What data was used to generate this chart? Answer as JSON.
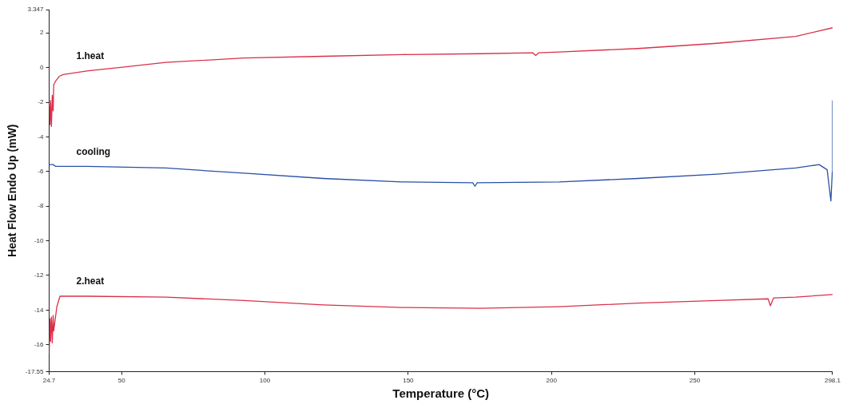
{
  "chart_data": {
    "type": "line",
    "xlabel": "Temperature (°C)",
    "ylabel": "Heat Flow Endo Up (mW)",
    "xlim": [
      24.7,
      298.1
    ],
    "xticks": [
      24.7,
      50,
      100,
      150,
      200,
      250,
      298.1
    ],
    "ylim": [
      -17.55,
      3.347
    ],
    "yticks": [
      3.347,
      2,
      0,
      -2,
      -4,
      -6,
      -8,
      -10,
      -12,
      -14,
      -16,
      -17.55
    ],
    "grid": false,
    "legend": false,
    "marker": "none",
    "line_style": "solid",
    "series": [
      {
        "name": "1.heat",
        "color": "#d9304a",
        "x": [
          24.7,
          25.0,
          25.2,
          25.5,
          25.8,
          26.1,
          26.3,
          26.9,
          28.3,
          29.6,
          37.9,
          51.6,
          65.4,
          92.8,
          120.3,
          147.8,
          175.2,
          193.5,
          194.5,
          195.5,
          202.7,
          230.2,
          257.7,
          285.2,
          298.1
        ],
        "values": [
          -2.0,
          -3.3,
          -1.9,
          -3.4,
          -1.6,
          -2.5,
          -1.0,
          -0.8,
          -0.5,
          -0.4,
          -0.2,
          0.05,
          0.3,
          0.55,
          0.65,
          0.75,
          0.8,
          0.85,
          0.7,
          0.85,
          0.9,
          1.1,
          1.4,
          1.8,
          2.3
        ]
      },
      {
        "name": "cooling",
        "color": "#2a4fa8",
        "x": [
          24.7,
          26.1,
          26.9,
          37.9,
          65.4,
          92.8,
          120.3,
          147.8,
          172.5,
          173.3,
          174.1,
          202.7,
          230.2,
          257.7,
          285.2,
          293.4,
          296.2,
          297.0,
          297.5,
          298.0,
          298.1
        ],
        "values": [
          -5.6,
          -5.6,
          -5.7,
          -5.7,
          -5.8,
          -6.1,
          -6.4,
          -6.6,
          -6.65,
          -6.85,
          -6.65,
          -6.6,
          -6.4,
          -6.15,
          -5.8,
          -5.6,
          -5.9,
          -7.0,
          -7.7,
          -6.0,
          -1.9
        ]
      },
      {
        "name": "2.heat",
        "color": "#d9304a",
        "x": [
          24.7,
          25.0,
          25.2,
          25.5,
          25.8,
          26.1,
          26.3,
          27.4,
          28.5,
          37.9,
          65.4,
          92.8,
          120.3,
          147.8,
          175.2,
          202.7,
          230.2,
          257.7,
          275.6,
          276.4,
          277.5,
          285.2,
          298.1
        ],
        "values": [
          -16.5,
          -14.5,
          -15.8,
          -14.4,
          -15.9,
          -14.3,
          -15.2,
          -13.8,
          -13.2,
          -13.2,
          -13.25,
          -13.45,
          -13.7,
          -13.85,
          -13.9,
          -13.8,
          -13.6,
          -13.45,
          -13.35,
          -13.75,
          -13.3,
          -13.25,
          -13.1
        ]
      }
    ]
  }
}
